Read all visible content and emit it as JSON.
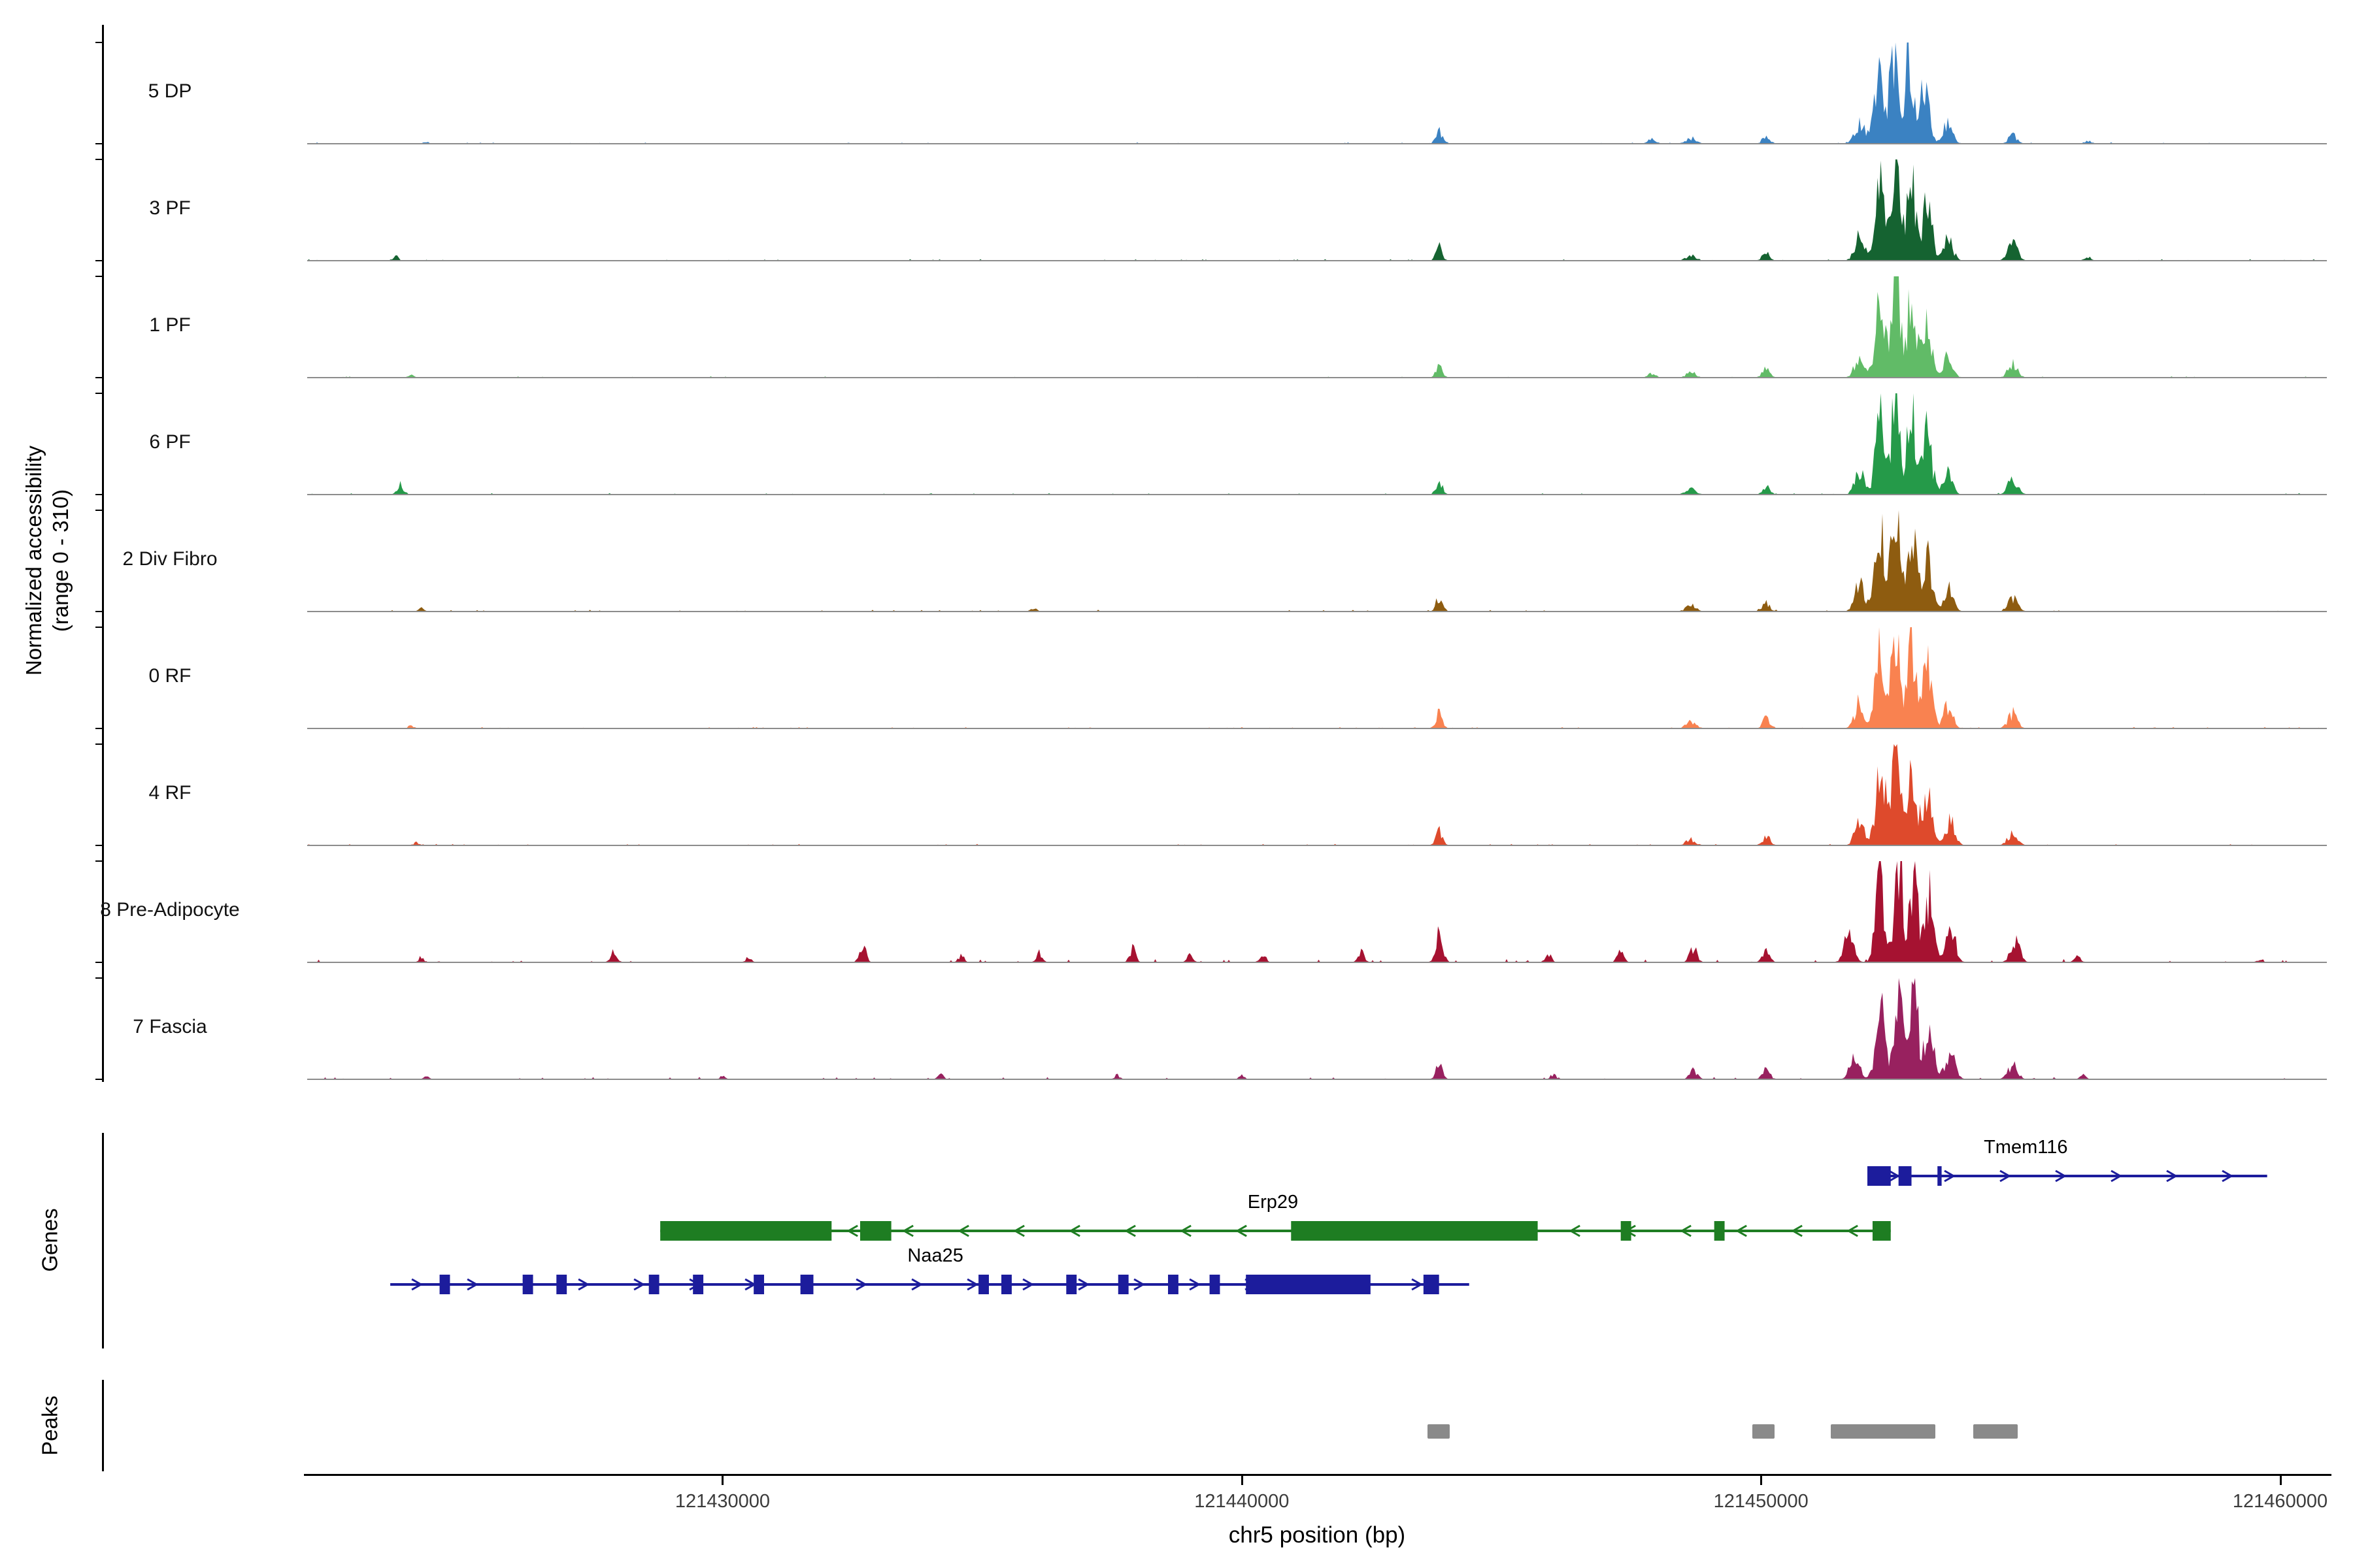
{
  "y_axis": {
    "label_line1": "Normalized accessibility",
    "label_line2": "(range 0 - 310)"
  },
  "x_axis": {
    "title": "chr5 position (bp)",
    "range": [
      121422000,
      121460900
    ],
    "ticks": [
      {
        "bp": 121430000,
        "label": "121430000"
      },
      {
        "bp": 121440000,
        "label": "121440000"
      },
      {
        "bp": 121450000,
        "label": "121450000"
      },
      {
        "bp": 121460000,
        "label": "121460000"
      }
    ]
  },
  "sections": {
    "genes_label": "Genes",
    "peaks_label": "Peaks"
  },
  "chart_data": {
    "type": "area",
    "description": "Single-cell ATAC-seq normalized accessibility coverage tracks over chr5:121,422,000-121,460,900 with gene models and called peaks",
    "value_range": [
      0,
      310
    ],
    "baseline_color": "#8c8c8c",
    "peak_color": "#8a8a8a",
    "tracks": [
      {
        "name": "5 DP",
        "color": "#3b82c2",
        "noise": 2,
        "peaks": [
          [
            121424300,
            6,
            50
          ],
          [
            121443800,
            40,
            60
          ],
          [
            121447900,
            14,
            70
          ],
          [
            121448650,
            16,
            90
          ],
          [
            121450100,
            22,
            70
          ],
          [
            121451900,
            60,
            90
          ],
          [
            121452250,
            210,
            90
          ],
          [
            121452550,
            300,
            80
          ],
          [
            121452850,
            240,
            80
          ],
          [
            121453150,
            160,
            90
          ],
          [
            121453600,
            60,
            90
          ],
          [
            121454850,
            25,
            80
          ],
          [
            121456300,
            8,
            60
          ]
        ]
      },
      {
        "name": "3 PF",
        "color": "#156331",
        "noise": 2,
        "peaks": [
          [
            121423700,
            14,
            50
          ],
          [
            121443800,
            40,
            60
          ],
          [
            121448650,
            18,
            90
          ],
          [
            121450100,
            24,
            70
          ],
          [
            121451900,
            70,
            90
          ],
          [
            121452300,
            240,
            90
          ],
          [
            121452600,
            305,
            80
          ],
          [
            121452900,
            250,
            80
          ],
          [
            121453200,
            170,
            90
          ],
          [
            121453600,
            65,
            90
          ],
          [
            121454850,
            55,
            90
          ],
          [
            121456300,
            10,
            60
          ]
        ]
      },
      {
        "name": "1 PF",
        "color": "#61bb67",
        "noise": 2,
        "peaks": [
          [
            121424000,
            8,
            50
          ],
          [
            121443800,
            38,
            60
          ],
          [
            121447900,
            12,
            70
          ],
          [
            121448650,
            16,
            90
          ],
          [
            121450100,
            26,
            70
          ],
          [
            121451900,
            65,
            90
          ],
          [
            121452300,
            220,
            90
          ],
          [
            121452600,
            300,
            80
          ],
          [
            121452900,
            245,
            80
          ],
          [
            121453200,
            165,
            90
          ],
          [
            121453600,
            60,
            90
          ],
          [
            121454850,
            40,
            90
          ]
        ]
      },
      {
        "name": "6 PF",
        "color": "#259a49",
        "noise": 2,
        "peaks": [
          [
            121423800,
            30,
            60
          ],
          [
            121443800,
            40,
            60
          ],
          [
            121448650,
            18,
            90
          ],
          [
            121450100,
            24,
            70
          ],
          [
            121451900,
            70,
            90
          ],
          [
            121452300,
            230,
            90
          ],
          [
            121452600,
            300,
            80
          ],
          [
            121452900,
            250,
            80
          ],
          [
            121453200,
            175,
            90
          ],
          [
            121453600,
            65,
            90
          ],
          [
            121454850,
            45,
            90
          ]
        ]
      },
      {
        "name": "2 Div Fibro",
        "color": "#8e5c10",
        "noise": 2.5,
        "peaks": [
          [
            121424200,
            10,
            50
          ],
          [
            121436000,
            8,
            60
          ],
          [
            121443800,
            45,
            60
          ],
          [
            121448650,
            20,
            90
          ],
          [
            121450100,
            26,
            70
          ],
          [
            121451900,
            80,
            90
          ],
          [
            121452300,
            250,
            90
          ],
          [
            121452600,
            310,
            80
          ],
          [
            121452900,
            260,
            80
          ],
          [
            121453200,
            180,
            90
          ],
          [
            121453600,
            70,
            90
          ],
          [
            121454850,
            40,
            90
          ]
        ]
      },
      {
        "name": "0 RF",
        "color": "#f98250",
        "noise": 2,
        "peaks": [
          [
            121424000,
            8,
            50
          ],
          [
            121443800,
            48,
            60
          ],
          [
            121448650,
            20,
            90
          ],
          [
            121450100,
            28,
            70
          ],
          [
            121451900,
            75,
            90
          ],
          [
            121452300,
            240,
            90
          ],
          [
            121452600,
            305,
            80
          ],
          [
            121452900,
            255,
            80
          ],
          [
            121453200,
            175,
            90
          ],
          [
            121453600,
            65,
            90
          ],
          [
            121454850,
            42,
            90
          ]
        ]
      },
      {
        "name": "4 RF",
        "color": "#de4a2c",
        "noise": 2,
        "peaks": [
          [
            121424100,
            8,
            50
          ],
          [
            121443800,
            42,
            60
          ],
          [
            121448650,
            18,
            90
          ],
          [
            121450100,
            24,
            70
          ],
          [
            121451900,
            70,
            90
          ],
          [
            121452300,
            235,
            90
          ],
          [
            121452600,
            300,
            80
          ],
          [
            121452900,
            250,
            80
          ],
          [
            121453200,
            170,
            90
          ],
          [
            121453650,
            70,
            90
          ],
          [
            121454850,
            38,
            90
          ]
        ]
      },
      {
        "name": "8 Pre-Adipocyte",
        "color": "#a61231",
        "noise": 5,
        "peaks": [
          [
            121424200,
            12,
            50
          ],
          [
            121427900,
            28,
            60
          ],
          [
            121430500,
            14,
            50
          ],
          [
            121432700,
            50,
            60
          ],
          [
            121434600,
            22,
            50
          ],
          [
            121436100,
            28,
            55
          ],
          [
            121437900,
            38,
            60
          ],
          [
            121439000,
            26,
            55
          ],
          [
            121440400,
            22,
            55
          ],
          [
            121442300,
            32,
            55
          ],
          [
            121443800,
            80,
            70
          ],
          [
            121445900,
            26,
            55
          ],
          [
            121447300,
            38,
            60
          ],
          [
            121448700,
            42,
            70
          ],
          [
            121450100,
            30,
            70
          ],
          [
            121451700,
            90,
            90
          ],
          [
            121452300,
            230,
            90
          ],
          [
            121452650,
            310,
            80
          ],
          [
            121452950,
            260,
            80
          ],
          [
            121453250,
            190,
            90
          ],
          [
            121453650,
            110,
            90
          ],
          [
            121454900,
            60,
            90
          ],
          [
            121456100,
            18,
            60
          ],
          [
            121459600,
            8,
            50
          ]
        ]
      },
      {
        "name": "7 Fascia",
        "color": "#98215f",
        "noise": 3.5,
        "peaks": [
          [
            121424300,
            8,
            50
          ],
          [
            121430000,
            8,
            50
          ],
          [
            121434200,
            16,
            50
          ],
          [
            121437600,
            12,
            50
          ],
          [
            121440000,
            10,
            50
          ],
          [
            121443800,
            50,
            60
          ],
          [
            121446000,
            14,
            55
          ],
          [
            121448700,
            28,
            70
          ],
          [
            121450100,
            28,
            70
          ],
          [
            121451800,
            70,
            90
          ],
          [
            121452300,
            210,
            90
          ],
          [
            121452650,
            290,
            80
          ],
          [
            121452950,
            240,
            80
          ],
          [
            121453250,
            170,
            90
          ],
          [
            121453650,
            80,
            90
          ],
          [
            121454850,
            42,
            90
          ],
          [
            121456200,
            12,
            55
          ]
        ]
      }
    ],
    "genes": [
      {
        "name": "Tmem116",
        "color": "#1c1c9c",
        "strand": "+",
        "row": 0,
        "start": 121452050,
        "end": 121459750,
        "label_bp": 121455100,
        "exons": [
          [
            121452050,
            121452500
          ],
          [
            121452650,
            121452900
          ],
          [
            121453400,
            121453480
          ]
        ]
      },
      {
        "name": "Erp29",
        "color": "#1e7d22",
        "strand": "-",
        "row": 1,
        "start": 121428800,
        "end": 121452500,
        "label_bp": 121440600,
        "exons": [
          [
            121428800,
            121432100
          ],
          [
            121432650,
            121433250
          ],
          [
            121440950,
            121445700
          ],
          [
            121447300,
            121447500
          ],
          [
            121449100,
            121449300
          ],
          [
            121452150,
            121452500
          ]
        ]
      },
      {
        "name": "Naa25",
        "color": "#1c1c9c",
        "strand": "+",
        "row": 2,
        "start": 121423600,
        "end": 121444380,
        "label_bp": 121434100,
        "exons": [
          [
            121424550,
            121424750
          ],
          [
            121426150,
            121426350
          ],
          [
            121426800,
            121427000
          ],
          [
            121428580,
            121428780
          ],
          [
            121429430,
            121429630
          ],
          [
            121430600,
            121430800
          ],
          [
            121431500,
            121431750
          ],
          [
            121434930,
            121435130
          ],
          [
            121435370,
            121435570
          ],
          [
            121436620,
            121436820
          ],
          [
            121437620,
            121437820
          ],
          [
            121438580,
            121438780
          ],
          [
            121439380,
            121439580
          ],
          [
            121440080,
            121442480
          ],
          [
            121443500,
            121443800
          ]
        ]
      }
    ],
    "peaks_track": [
      [
        121443580,
        121444000
      ],
      [
        121449840,
        121450260
      ],
      [
        121451340,
        121453360
      ],
      [
        121454090,
        121454940
      ]
    ]
  }
}
